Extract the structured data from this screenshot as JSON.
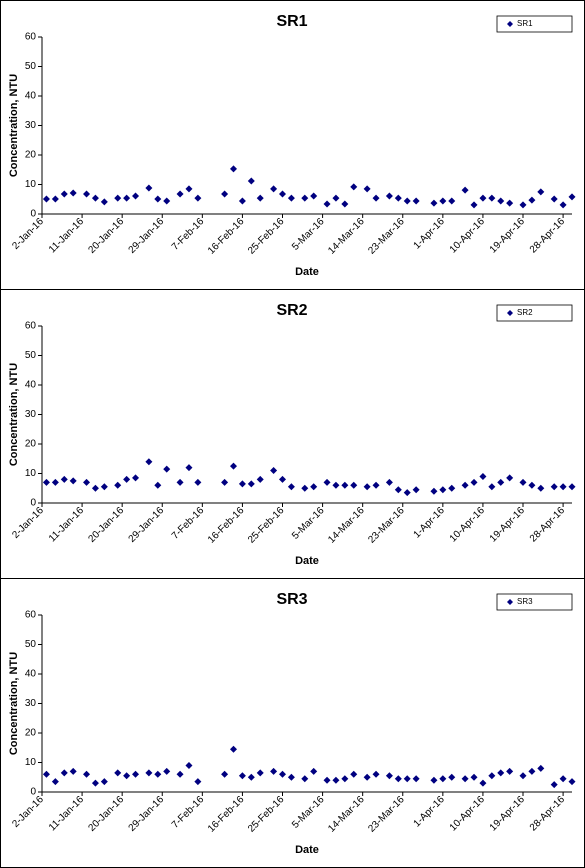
{
  "chart_data": [
    {
      "type": "scatter",
      "title": "SR1",
      "xlabel": "Date",
      "ylabel": "Concentration, NTU",
      "legend": "upper right",
      "x": [
        "2016-01-03",
        "2016-01-05",
        "2016-01-07",
        "2016-01-09",
        "2016-01-12",
        "2016-01-14",
        "2016-01-16",
        "2016-01-19",
        "2016-01-21",
        "2016-01-23",
        "2016-01-26",
        "2016-01-28",
        "2016-01-30",
        "2016-02-02",
        "2016-02-04",
        "2016-02-06",
        "2016-02-12",
        "2016-02-14",
        "2016-02-16",
        "2016-02-18",
        "2016-02-20",
        "2016-02-23",
        "2016-02-25",
        "2016-02-27",
        "2016-03-01",
        "2016-03-03",
        "2016-03-06",
        "2016-03-08",
        "2016-03-10",
        "2016-03-12",
        "2016-03-15",
        "2016-03-17",
        "2016-03-20",
        "2016-03-22",
        "2016-03-24",
        "2016-03-26",
        "2016-03-30",
        "2016-04-01",
        "2016-04-03",
        "2016-04-06",
        "2016-04-08",
        "2016-04-10",
        "2016-04-12",
        "2016-04-14",
        "2016-04-16",
        "2016-04-19",
        "2016-04-21",
        "2016-04-23",
        "2016-04-26",
        "2016-04-28",
        "2016-04-30"
      ],
      "series": [
        {
          "name": "SR1",
          "color": "#000080",
          "values": [
            5.1,
            5.1,
            6.8,
            7.1,
            6.8,
            5.4,
            4.1,
            5.4,
            5.4,
            6.1,
            8.8,
            5.1,
            4.4,
            6.8,
            8.5,
            5.4,
            6.8,
            15.3,
            4.4,
            11.2,
            5.4,
            8.5,
            6.8,
            5.4,
            5.4,
            6.1,
            3.4,
            5.4,
            3.4,
            9.2,
            8.5,
            5.4,
            6.1,
            5.4,
            4.4,
            4.4,
            3.7,
            4.4,
            4.4,
            8.1,
            3.1,
            5.4,
            5.4,
            4.4,
            3.7,
            3.1,
            4.7,
            7.5,
            5.1,
            3.1,
            5.8
          ]
        }
      ],
      "xlim": [
        "2016-01-02",
        "2016-04-30"
      ],
      "xticks": [
        {
          "value": "2016-01-02",
          "label": "2-Jan-16"
        },
        {
          "value": "2016-01-11",
          "label": "11-Jan-16"
        },
        {
          "value": "2016-01-20",
          "label": "20-Jan-16"
        },
        {
          "value": "2016-01-29",
          "label": "29-Jan-16"
        },
        {
          "value": "2016-02-07",
          "label": "7-Feb-16"
        },
        {
          "value": "2016-02-16",
          "label": "16-Feb-16"
        },
        {
          "value": "2016-02-25",
          "label": "25-Feb-16"
        },
        {
          "value": "2016-03-05",
          "label": "5-Mar-16"
        },
        {
          "value": "2016-03-14",
          "label": "14-Mar-16"
        },
        {
          "value": "2016-03-23",
          "label": "23-Mar-16"
        },
        {
          "value": "2016-04-01",
          "label": "1-Apr-16"
        },
        {
          "value": "2016-04-10",
          "label": "10-Apr-16"
        },
        {
          "value": "2016-04-19",
          "label": "19-Apr-16"
        },
        {
          "value": "2016-04-28",
          "label": "28-Apr-16"
        }
      ],
      "ylim": [
        0,
        60
      ],
      "yticks": [
        0,
        10,
        20,
        30,
        40,
        50,
        60
      ]
    },
    {
      "type": "scatter",
      "title": "SR2",
      "xlabel": "Date",
      "ylabel": "Concentration, NTU",
      "legend": "upper right",
      "x": [
        "2016-01-03",
        "2016-01-05",
        "2016-01-07",
        "2016-01-09",
        "2016-01-12",
        "2016-01-14",
        "2016-01-16",
        "2016-01-19",
        "2016-01-21",
        "2016-01-23",
        "2016-01-26",
        "2016-01-28",
        "2016-01-30",
        "2016-02-02",
        "2016-02-04",
        "2016-02-06",
        "2016-02-12",
        "2016-02-14",
        "2016-02-16",
        "2016-02-18",
        "2016-02-20",
        "2016-02-23",
        "2016-02-25",
        "2016-02-27",
        "2016-03-01",
        "2016-03-03",
        "2016-03-06",
        "2016-03-08",
        "2016-03-10",
        "2016-03-12",
        "2016-03-15",
        "2016-03-17",
        "2016-03-20",
        "2016-03-22",
        "2016-03-24",
        "2016-03-26",
        "2016-03-30",
        "2016-04-01",
        "2016-04-03",
        "2016-04-06",
        "2016-04-08",
        "2016-04-10",
        "2016-04-12",
        "2016-04-14",
        "2016-04-16",
        "2016-04-19",
        "2016-04-21",
        "2016-04-23",
        "2016-04-26",
        "2016-04-28",
        "2016-04-30"
      ],
      "series": [
        {
          "name": "SR2",
          "color": "#000080",
          "values": [
            7,
            7,
            8,
            7.5,
            7,
            5,
            5.5,
            6,
            8,
            8.5,
            14,
            6,
            11.5,
            7,
            12,
            7,
            7,
            12.5,
            6.5,
            6.5,
            8,
            11,
            8,
            5.5,
            5,
            5.5,
            7,
            6,
            6,
            6,
            5.5,
            6,
            7,
            4.5,
            3.5,
            4.5,
            4,
            4.5,
            5,
            6,
            7,
            9,
            5.5,
            7,
            8.5,
            7,
            6,
            5,
            5.5,
            5.5,
            5.5
          ]
        }
      ],
      "xlim": [
        "2016-01-02",
        "2016-04-30"
      ],
      "xticks": [
        {
          "value": "2016-01-02",
          "label": "2-Jan-16"
        },
        {
          "value": "2016-01-11",
          "label": "11-Jan-16"
        },
        {
          "value": "2016-01-20",
          "label": "20-Jan-16"
        },
        {
          "value": "2016-01-29",
          "label": "29-Jan-16"
        },
        {
          "value": "2016-02-07",
          "label": "7-Feb-16"
        },
        {
          "value": "2016-02-16",
          "label": "16-Feb-16"
        },
        {
          "value": "2016-02-25",
          "label": "25-Feb-16"
        },
        {
          "value": "2016-03-05",
          "label": "5-Mar-16"
        },
        {
          "value": "2016-03-14",
          "label": "14-Mar-16"
        },
        {
          "value": "2016-03-23",
          "label": "23-Mar-16"
        },
        {
          "value": "2016-04-01",
          "label": "1-Apr-16"
        },
        {
          "value": "2016-04-10",
          "label": "10-Apr-16"
        },
        {
          "value": "2016-04-19",
          "label": "19-Apr-16"
        },
        {
          "value": "2016-04-28",
          "label": "28-Apr-16"
        }
      ],
      "ylim": [
        0,
        60
      ],
      "yticks": [
        0,
        10,
        20,
        30,
        40,
        50,
        60
      ]
    },
    {
      "type": "scatter",
      "title": "SR3",
      "xlabel": "Date",
      "ylabel": "Concentration, NTU",
      "legend": "upper right",
      "x": [
        "2016-01-03",
        "2016-01-05",
        "2016-01-07",
        "2016-01-09",
        "2016-01-12",
        "2016-01-14",
        "2016-01-16",
        "2016-01-19",
        "2016-01-21",
        "2016-01-23",
        "2016-01-26",
        "2016-01-28",
        "2016-01-30",
        "2016-02-02",
        "2016-02-04",
        "2016-02-06",
        "2016-02-12",
        "2016-02-14",
        "2016-02-16",
        "2016-02-18",
        "2016-02-20",
        "2016-02-23",
        "2016-02-25",
        "2016-02-27",
        "2016-03-01",
        "2016-03-03",
        "2016-03-06",
        "2016-03-08",
        "2016-03-10",
        "2016-03-12",
        "2016-03-15",
        "2016-03-17",
        "2016-03-20",
        "2016-03-22",
        "2016-03-24",
        "2016-03-26",
        "2016-03-30",
        "2016-04-01",
        "2016-04-03",
        "2016-04-06",
        "2016-04-08",
        "2016-04-10",
        "2016-04-12",
        "2016-04-14",
        "2016-04-16",
        "2016-04-19",
        "2016-04-21",
        "2016-04-23",
        "2016-04-26",
        "2016-04-28",
        "2016-04-30"
      ],
      "series": [
        {
          "name": "SR3",
          "color": "#000080",
          "values": [
            6,
            3.5,
            6.5,
            7,
            6,
            3,
            3.5,
            6.5,
            5.5,
            6,
            6.5,
            6,
            7,
            6,
            9,
            3.5,
            6,
            14.5,
            5.5,
            5,
            6.5,
            7,
            6,
            5,
            4.5,
            7,
            4,
            4,
            4.5,
            6,
            5,
            6,
            5.5,
            4.5,
            4.5,
            4.5,
            4,
            4.5,
            5,
            4.5,
            5,
            3,
            5.5,
            6.5,
            7,
            5.5,
            7,
            8,
            2.5,
            4.5,
            3.5
          ]
        }
      ],
      "xlim": [
        "2016-01-02",
        "2016-04-30"
      ],
      "xticks": [
        {
          "value": "2016-01-02",
          "label": "2-Jan-16"
        },
        {
          "value": "2016-01-11",
          "label": "11-Jan-16"
        },
        {
          "value": "2016-01-20",
          "label": "20-Jan-16"
        },
        {
          "value": "2016-01-29",
          "label": "29-Jan-16"
        },
        {
          "value": "2016-02-07",
          "label": "7-Feb-16"
        },
        {
          "value": "2016-02-16",
          "label": "16-Feb-16"
        },
        {
          "value": "2016-02-25",
          "label": "25-Feb-16"
        },
        {
          "value": "2016-03-05",
          "label": "5-Mar-16"
        },
        {
          "value": "2016-03-14",
          "label": "14-Mar-16"
        },
        {
          "value": "2016-03-23",
          "label": "23-Mar-16"
        },
        {
          "value": "2016-04-01",
          "label": "1-Apr-16"
        },
        {
          "value": "2016-04-10",
          "label": "10-Apr-16"
        },
        {
          "value": "2016-04-19",
          "label": "19-Apr-16"
        },
        {
          "value": "2016-04-28",
          "label": "28-Apr-16"
        }
      ],
      "ylim": [
        0,
        60
      ],
      "yticks": [
        0,
        10,
        20,
        30,
        40,
        50,
        60
      ]
    }
  ]
}
